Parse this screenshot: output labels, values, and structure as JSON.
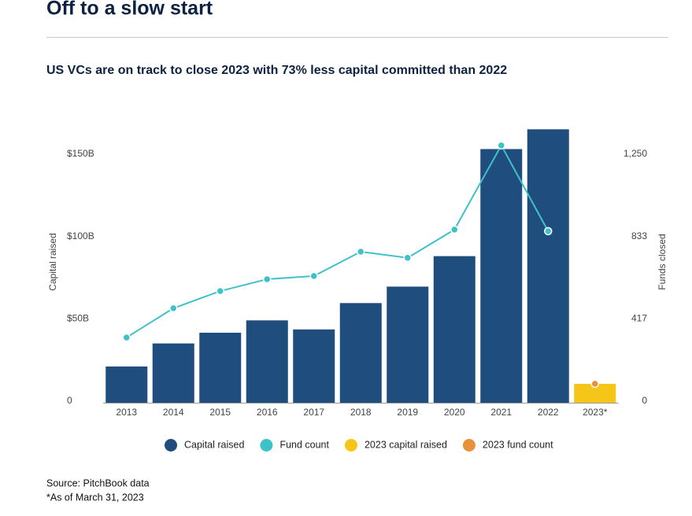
{
  "chart_data": {
    "type": "bar",
    "title": "Off to a slow start",
    "subtitle": "US VCs are on track to close 2023 with 73% less capital committed than 2022",
    "y_label": "Capital raised",
    "y2_label": "Funds closed",
    "categories": [
      "2013",
      "2014",
      "2015",
      "2016",
      "2017",
      "2018",
      "2019",
      "2020",
      "2021",
      "2022",
      "2023*"
    ],
    "series": [
      {
        "name": "Capital raised",
        "type": "bar",
        "color": "#1f4e7e",
        "values": [
          22,
          36,
          42.5,
          50,
          44.5,
          60.5,
          70.5,
          89,
          154,
          166,
          null
        ]
      },
      {
        "name": "Fund count",
        "type": "line",
        "axis": "y2",
        "color": "#3fc1c9",
        "values": [
          330,
          478,
          565,
          625,
          641,
          764,
          733,
          876,
          1302,
          868,
          null
        ]
      },
      {
        "name": "2023 capital raised",
        "type": "bar",
        "color": "#f5c518",
        "values": [
          null,
          null,
          null,
          null,
          null,
          null,
          null,
          null,
          null,
          null,
          11.5
        ]
      },
      {
        "name": "2023 fund count",
        "type": "line",
        "axis": "y2",
        "color": "#e8913a",
        "values": [
          null,
          null,
          null,
          null,
          null,
          null,
          null,
          null,
          null,
          null,
          96
        ]
      }
    ],
    "ylim": [
      0,
      170
    ],
    "yticks": [
      {
        "value": 0,
        "label": "0"
      },
      {
        "value": 50,
        "label": "$50B"
      },
      {
        "value": 100,
        "label": "$100B"
      },
      {
        "value": 150,
        "label": "$150B"
      }
    ],
    "y2lim": [
      0,
      1416.7
    ],
    "y2ticks": [
      0,
      417,
      833,
      {
        "value": 1250,
        "label": "1,250"
      }
    ],
    "source": "Source: PitchBook data",
    "note": "*As of March 31, 2023"
  }
}
